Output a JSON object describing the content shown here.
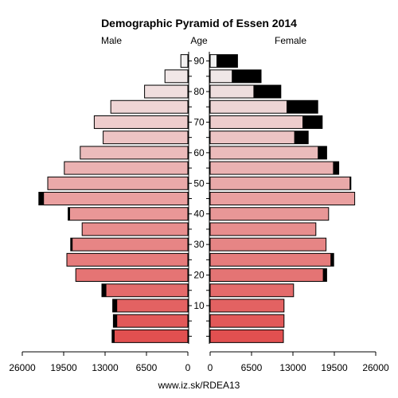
{
  "chart_data": {
    "type": "bar",
    "orientation": "horizontal",
    "title": "Demographic Pyramid of Essen 2014",
    "left_label": "Male",
    "center_label": "Age",
    "right_label": "Female",
    "footer": "www.iz.sk/RDEA13",
    "age_tick_labels": [
      "10",
      "20",
      "30",
      "40",
      "50",
      "60",
      "70",
      "80",
      "90"
    ],
    "x_tick_labels_left": [
      "26000",
      "19500",
      "13000",
      "6500",
      "0"
    ],
    "x_tick_labels_right": [
      "0",
      "6500",
      "13000",
      "19500",
      "26000"
    ],
    "xlim": [
      0,
      26000
    ],
    "age_groups": [
      "0-4",
      "5-9",
      "10-14",
      "15-19",
      "20-24",
      "25-29",
      "30-34",
      "35-39",
      "40-44",
      "45-49",
      "50-54",
      "55-59",
      "60-64",
      "65-69",
      "70-74",
      "75-79",
      "80-84",
      "85-89",
      "90+"
    ],
    "series": [
      {
        "name": "Male",
        "total": [
          11900,
          11700,
          11800,
          13500,
          17600,
          19000,
          18400,
          16600,
          18800,
          23400,
          22000,
          19400,
          16900,
          13300,
          14700,
          12100,
          6800,
          3600,
          1100
        ],
        "foreign": [
          400,
          600,
          700,
          700,
          0,
          0,
          300,
          0,
          300,
          800,
          0,
          0,
          0,
          0,
          0,
          0,
          0,
          0,
          0
        ]
      },
      {
        "name": "Female",
        "total": [
          11500,
          11600,
          11600,
          13100,
          18300,
          19400,
          18200,
          16600,
          18600,
          22700,
          22100,
          20200,
          18300,
          15400,
          17600,
          16900,
          11100,
          8000,
          4300
        ],
        "foreign": [
          0,
          0,
          0,
          0,
          600,
          500,
          0,
          0,
          0,
          0,
          200,
          900,
          1400,
          2200,
          3100,
          4900,
          4300,
          4600,
          3300
        ]
      }
    ]
  }
}
